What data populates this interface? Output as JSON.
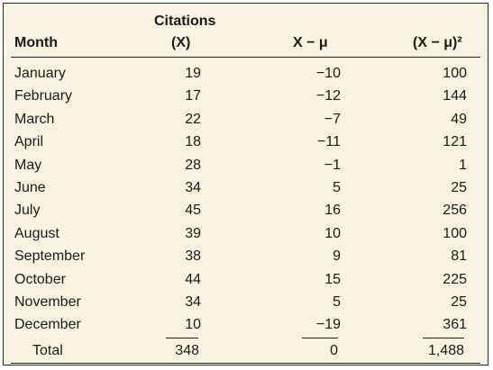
{
  "header": {
    "month": "Month",
    "citations": "Citations",
    "x_symbol": "(X)",
    "deviation": "X − μ",
    "squared": "(X − μ)²"
  },
  "rows": [
    {
      "month": "January",
      "x": "19",
      "dev": "−10",
      "sq": "100"
    },
    {
      "month": "February",
      "x": "17",
      "dev": "−12",
      "sq": "144"
    },
    {
      "month": "March",
      "x": "22",
      "dev": "−7",
      "sq": "49"
    },
    {
      "month": "April",
      "x": "18",
      "dev": "−11",
      "sq": "121"
    },
    {
      "month": "May",
      "x": "28",
      "dev": "−1",
      "sq": "1"
    },
    {
      "month": "June",
      "x": "34",
      "dev": "5",
      "sq": "25"
    },
    {
      "month": "July",
      "x": "45",
      "dev": "16",
      "sq": "256"
    },
    {
      "month": "August",
      "x": "39",
      "dev": "10",
      "sq": "100"
    },
    {
      "month": "September",
      "x": "38",
      "dev": "9",
      "sq": "81"
    },
    {
      "month": "October",
      "x": "44",
      "dev": "15",
      "sq": "225"
    },
    {
      "month": "November",
      "x": "34",
      "dev": "5",
      "sq": "25"
    },
    {
      "month": "December",
      "x": "10",
      "dev": "−19",
      "sq": "361"
    }
  ],
  "total": {
    "label": "Total",
    "x": "348",
    "dev": "0",
    "sq": "1,488"
  }
}
